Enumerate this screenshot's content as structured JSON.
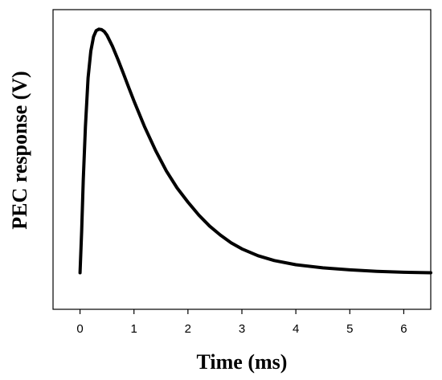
{
  "chart_data": {
    "type": "line",
    "title": "",
    "xlabel": "Time (ms)",
    "ylabel": "PEC response (V)",
    "xlim": [
      -0.5,
      6.5
    ],
    "ylim": [
      -0.15,
      1.08
    ],
    "x_ticks": [
      {
        "value": 0,
        "label": "0"
      },
      {
        "value": 1,
        "label": "1"
      },
      {
        "value": 2,
        "label": "2"
      },
      {
        "value": 3,
        "label": "3"
      },
      {
        "value": 4,
        "label": "4"
      },
      {
        "value": 5,
        "label": "5"
      },
      {
        "value": 6,
        "label": "6"
      }
    ],
    "y_ticks_shown": false,
    "grid": false,
    "legend": "none",
    "line_color": "#000000",
    "series": [
      {
        "x": [
          0.0,
          0.03,
          0.06,
          0.1,
          0.15,
          0.2,
          0.25,
          0.3,
          0.35,
          0.4,
          0.45,
          0.5,
          0.6,
          0.7,
          0.8,
          0.9,
          1.0,
          1.2,
          1.4,
          1.6,
          1.8,
          2.0,
          2.2,
          2.4,
          2.6,
          2.8,
          3.0,
          3.3,
          3.6,
          4.0,
          4.5,
          5.0,
          5.5,
          6.0,
          6.5
        ],
        "y": [
          0.0,
          0.17,
          0.38,
          0.6,
          0.8,
          0.91,
          0.969,
          0.994,
          1.0,
          0.998,
          0.99,
          0.975,
          0.93,
          0.877,
          0.82,
          0.762,
          0.705,
          0.598,
          0.502,
          0.418,
          0.348,
          0.29,
          0.237,
          0.192,
          0.155,
          0.123,
          0.098,
          0.07,
          0.05,
          0.033,
          0.02,
          0.012,
          0.006,
          0.002,
          0.0
        ]
      }
    ]
  }
}
